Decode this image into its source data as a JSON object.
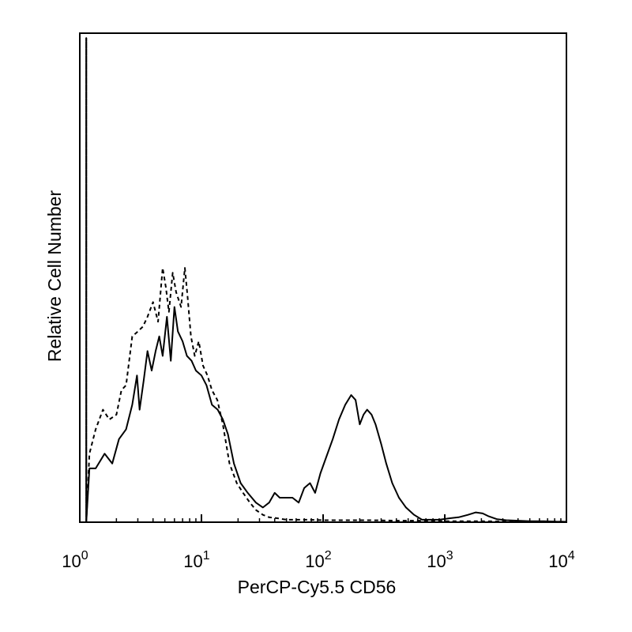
{
  "chart_data": {
    "type": "line",
    "xlabel": "PerCP-Cy5.5 CD56",
    "ylabel": "Relative Cell Number",
    "x_scale": "log",
    "xlim": [
      1,
      10000
    ],
    "ylim": [
      0,
      100
    ],
    "grid": false,
    "legend": "none",
    "x_ticks": [
      {
        "value": 1,
        "base": "10",
        "exp": "0"
      },
      {
        "value": 10,
        "base": "10",
        "exp": "1"
      },
      {
        "value": 100,
        "base": "10",
        "exp": "2"
      },
      {
        "value": 1000,
        "base": "10",
        "exp": "3"
      },
      {
        "value": 10000,
        "base": "10",
        "exp": "4"
      }
    ],
    "series": [
      {
        "style": "solid",
        "color": "#000000",
        "x": [
          1.13,
          1.13,
          1.13,
          1.13,
          1.2,
          1.35,
          1.6,
          1.85,
          2.1,
          2.4,
          2.7,
          2.95,
          3.1,
          3.35,
          3.6,
          3.9,
          4.2,
          4.5,
          4.8,
          5.2,
          5.6,
          6.0,
          6.4,
          7.0,
          7.6,
          8.3,
          9.0,
          10.0,
          11.0,
          12.2,
          13.6,
          15.0,
          16.5,
          18.5,
          21,
          24,
          28,
          32,
          36,
          40,
          44,
          50,
          56,
          63,
          70,
          78,
          86,
          95,
          105,
          120,
          135,
          152,
          170,
          185,
          200,
          215,
          230,
          250,
          270,
          300,
          330,
          370,
          420,
          480,
          560,
          650,
          760,
          900,
          1100,
          1300,
          1550,
          1800,
          2050,
          2300,
          2700,
          3200,
          4000,
          5000,
          6500,
          8500,
          10000
        ],
        "y": [
          0,
          99,
          58,
          0,
          11,
          11,
          14,
          12,
          17,
          19,
          24,
          30,
          23,
          29,
          35,
          31,
          35,
          38,
          34,
          42,
          33,
          44,
          39,
          37,
          34,
          33,
          31,
          30,
          28,
          24,
          23,
          21,
          18,
          12,
          8,
          6,
          4,
          3,
          4,
          6,
          5,
          5,
          5,
          4,
          7,
          8,
          6,
          10,
          13,
          17,
          21,
          24,
          26,
          25,
          20,
          22,
          23,
          22,
          20,
          16,
          12,
          8,
          5,
          3,
          1.5,
          0.5,
          0.5,
          0.5,
          0.8,
          1.0,
          1.5,
          2.0,
          1.8,
          1.2,
          0.6,
          0.4,
          0.3,
          0.2,
          0.2,
          0.1,
          0.1
        ]
      },
      {
        "style": "dashed",
        "color": "#000000",
        "x": [
          1.13,
          1.13,
          1.13,
          1.13,
          1.2,
          1.35,
          1.55,
          1.75,
          2.0,
          2.2,
          2.4,
          2.7,
          3.0,
          3.3,
          3.6,
          4.0,
          4.4,
          4.8,
          5.1,
          5.4,
          5.8,
          6.2,
          6.8,
          7.3,
          7.7,
          8.2,
          8.8,
          9.5,
          10.3,
          11.2,
          12.2,
          13.5,
          15.0,
          17.0,
          19.5,
          22,
          25,
          28,
          32,
          36,
          42,
          50,
          60,
          75,
          100,
          150,
          250,
          400,
          700,
          1000,
          2000,
          5000,
          10000
        ],
        "y": [
          0,
          99,
          58,
          0,
          14,
          19,
          23,
          21,
          22,
          27,
          28,
          38,
          39,
          40,
          42,
          45,
          41,
          52,
          48,
          43,
          51,
          47,
          44,
          52,
          46,
          38,
          34,
          37,
          32,
          30,
          27,
          25,
          20,
          12,
          8,
          6,
          4,
          2.5,
          1.5,
          1.0,
          0.8,
          0.5,
          0.5,
          0.5,
          0.4,
          0.4,
          0.4,
          0.3,
          0.3,
          0.2,
          0.2,
          0.1,
          0.1
        ]
      }
    ]
  }
}
